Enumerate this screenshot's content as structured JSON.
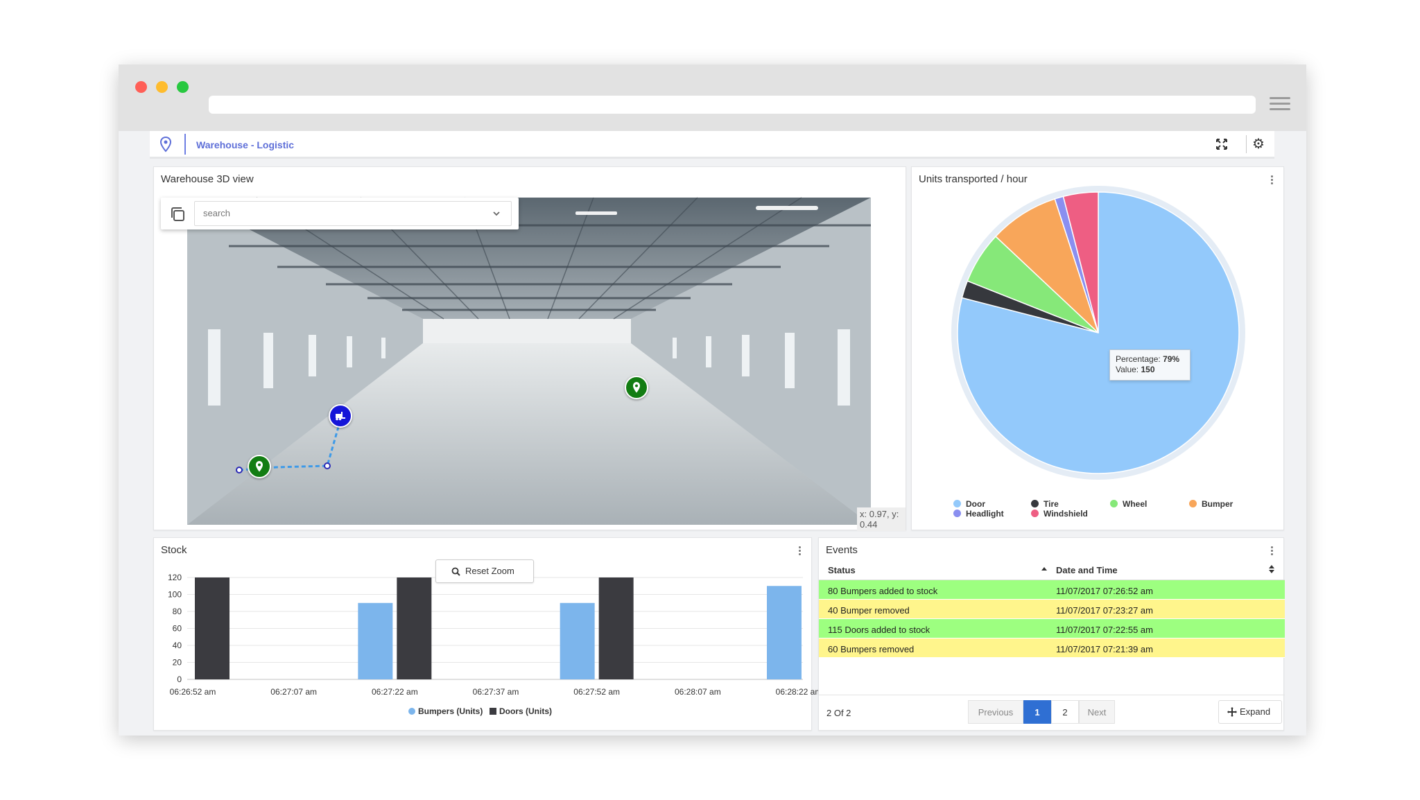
{
  "app": {
    "breadcrumb": "Warehouse - Logistic",
    "accent": "#5e6fd8"
  },
  "view3d": {
    "title": "Warehouse 3D view",
    "search_placeholder": "search",
    "coords": "x: 0.97, y: 0.44"
  },
  "pie": {
    "title": "Units transported / hour",
    "tooltip_pct_label": "Percentage:",
    "tooltip_pct": "79%",
    "tooltip_val_label": "Value:",
    "tooltip_val": "150"
  },
  "stock": {
    "title": "Stock",
    "reset_zoom": "Reset Zoom"
  },
  "events": {
    "title": "Events",
    "col_status": "Status",
    "col_datetime": "Date and Time",
    "rows": [
      {
        "status": "80 Bumpers added to stock",
        "datetime": "11/07/2017 07:26:52 am",
        "color": "green"
      },
      {
        "status": "40 Bumper removed",
        "datetime": "11/07/2017 07:23:27 am",
        "color": "yellow"
      },
      {
        "status": "115 Doors added to stock",
        "datetime": "11/07/2017 07:22:55 am",
        "color": "green"
      },
      {
        "status": "60 Bumpers removed",
        "datetime": "11/07/2017 07:21:39 am",
        "color": "yellow"
      }
    ],
    "count": "2 Of 2",
    "prev": "Previous",
    "page1": "1",
    "page2": "2",
    "next": "Next",
    "expand": "Expand"
  },
  "chart_data": [
    {
      "type": "pie",
      "title": "Units transported / hour",
      "slices": [
        {
          "name": "Door",
          "percent": 79,
          "value": 150,
          "color": "#93c9fb"
        },
        {
          "name": "Tire",
          "percent": 2,
          "color": "#36383d"
        },
        {
          "name": "Wheel",
          "percent": 6,
          "color": "#86e879"
        },
        {
          "name": "Bumper",
          "percent": 8,
          "color": "#f8a65a"
        },
        {
          "name": "Headlight",
          "percent": 1,
          "color": "#8a8ff0"
        },
        {
          "name": "Windshield",
          "percent": 4,
          "color": "#ee5e83"
        }
      ],
      "legend_position": "bottom"
    },
    {
      "type": "bar",
      "title": "Stock",
      "x_tick_labels": [
        "06:26:52 am",
        "06:27:07 am",
        "06:27:22 am",
        "06:27:37 am",
        "06:27:52 am",
        "06:28:07 am",
        "06:28:22 am"
      ],
      "ylim": [
        0,
        120
      ],
      "yticks": [
        0,
        20,
        40,
        60,
        80,
        100,
        120
      ],
      "grid": true,
      "series": [
        {
          "name": "Bumpers (Units)",
          "color": "#7cb5ec",
          "points": [
            {
              "x": "06:27:22 am",
              "y": 90
            },
            {
              "x": "06:27:52 am",
              "y": 90
            },
            {
              "x": "06:28:22 am",
              "y": 110
            }
          ]
        },
        {
          "name": "Doors (Units)",
          "color": "#3b3b40",
          "points": [
            {
              "x": "06:26:52 am",
              "y": 120
            },
            {
              "x": "06:27:22 am",
              "y": 120
            },
            {
              "x": "06:27:52 am",
              "y": 120
            }
          ]
        }
      ],
      "legend_position": "bottom"
    }
  ]
}
